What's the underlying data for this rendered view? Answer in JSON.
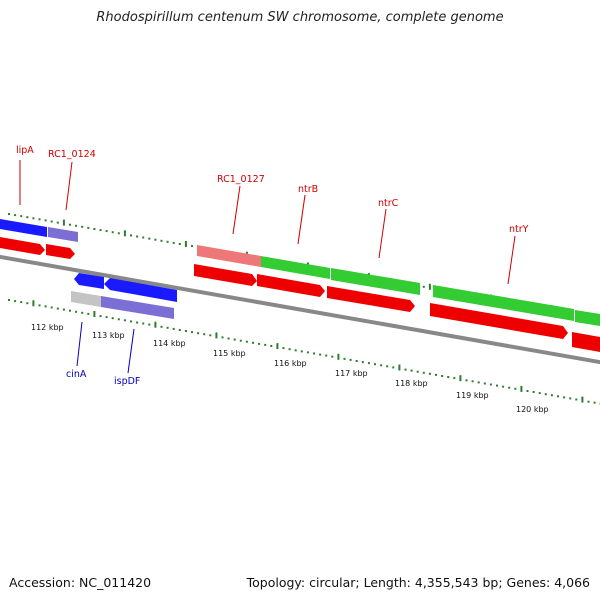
{
  "header": {
    "title": "Rhodospirillum centenum SW chromosome, complete genome"
  },
  "footer": {
    "accession": "Accession: NC_011420",
    "summary": "Topology: circular; Length: 4,355,543 bp; Genes: 4,066"
  },
  "colors": {
    "cds_red": "#ee0000",
    "gene_green": "#33cc33",
    "gene_blue": "#1a1aff",
    "gene_lavender": "#7b6fd6",
    "gene_pink": "#ee7777",
    "gene_gray": "#c4c4c4",
    "backbone": "#888888",
    "tick": "#2e7d2e",
    "label_red": "#cc0000",
    "label_blue": "#0000bb"
  },
  "axis": {
    "kbp_labels": [
      "112 kbp",
      "113 kbp",
      "114 kbp",
      "115 kbp",
      "116 kbp",
      "117 kbp",
      "118 kbp",
      "119 kbp",
      "120 kbp"
    ]
  },
  "labels": {
    "top": [
      "lipA",
      "RC1_0124",
      "RC1_0127",
      "ntrB",
      "ntrC",
      "ntrY"
    ],
    "bottom": [
      "cinA",
      "ispDF"
    ]
  }
}
